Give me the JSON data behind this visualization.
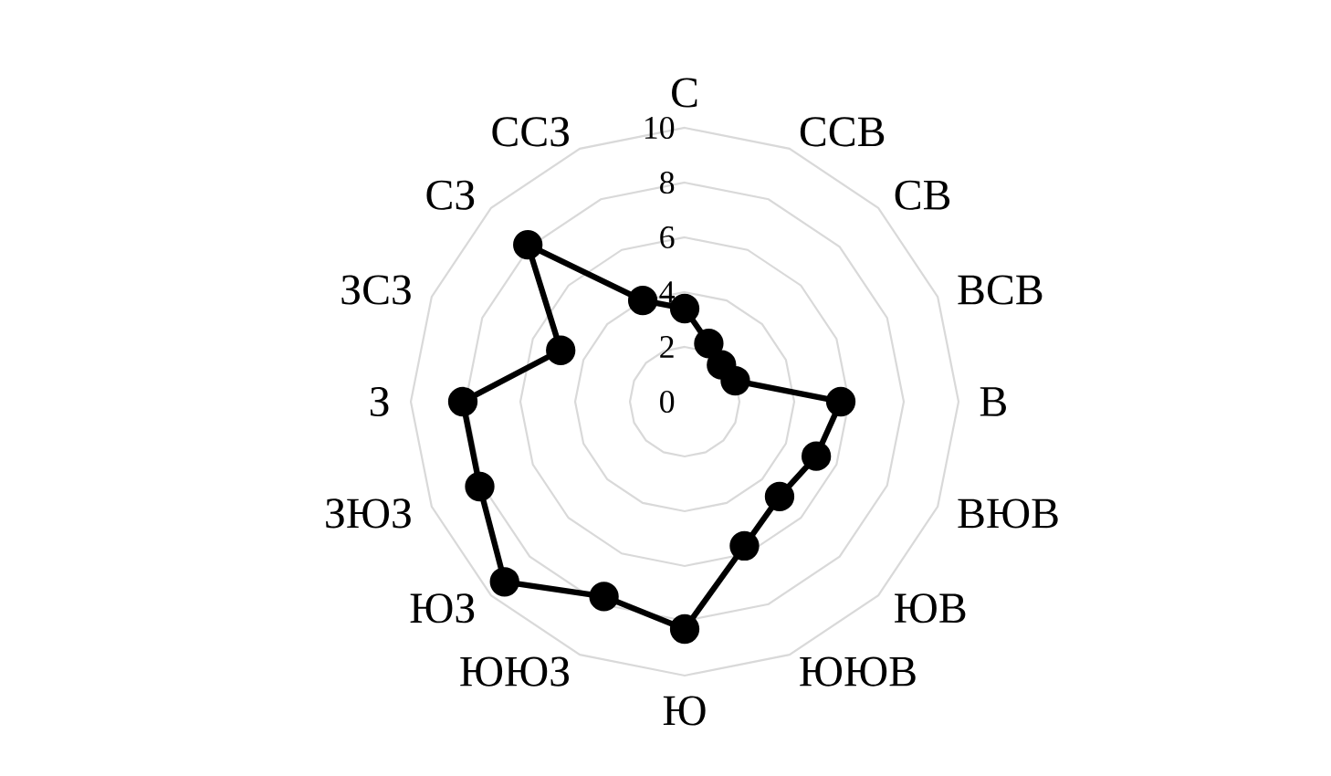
{
  "chart_data": {
    "type": "radar",
    "categories": [
      "С",
      "ССВ",
      "СВ",
      "ВСВ",
      "В",
      "ВЮВ",
      "ЮВ",
      "ЮЮВ",
      "Ю",
      "ЮЮЗ",
      "ЮЗ",
      "ЗЮЗ",
      "З",
      "ЗСЗ",
      "СЗ",
      "ССЗ"
    ],
    "series": [
      {
        "color": "#000000",
        "values": [
          3.4,
          2.3,
          1.9,
          2.0,
          5.7,
          5.2,
          4.9,
          5.7,
          8.3,
          7.7,
          9.3,
          8.1,
          8.1,
          4.9,
          8.1,
          4.0
        ]
      }
    ],
    "ylim": [
      0,
      10
    ],
    "yticks": [
      0,
      2,
      4,
      6,
      8,
      10
    ],
    "grid": true,
    "marker": "circle"
  }
}
